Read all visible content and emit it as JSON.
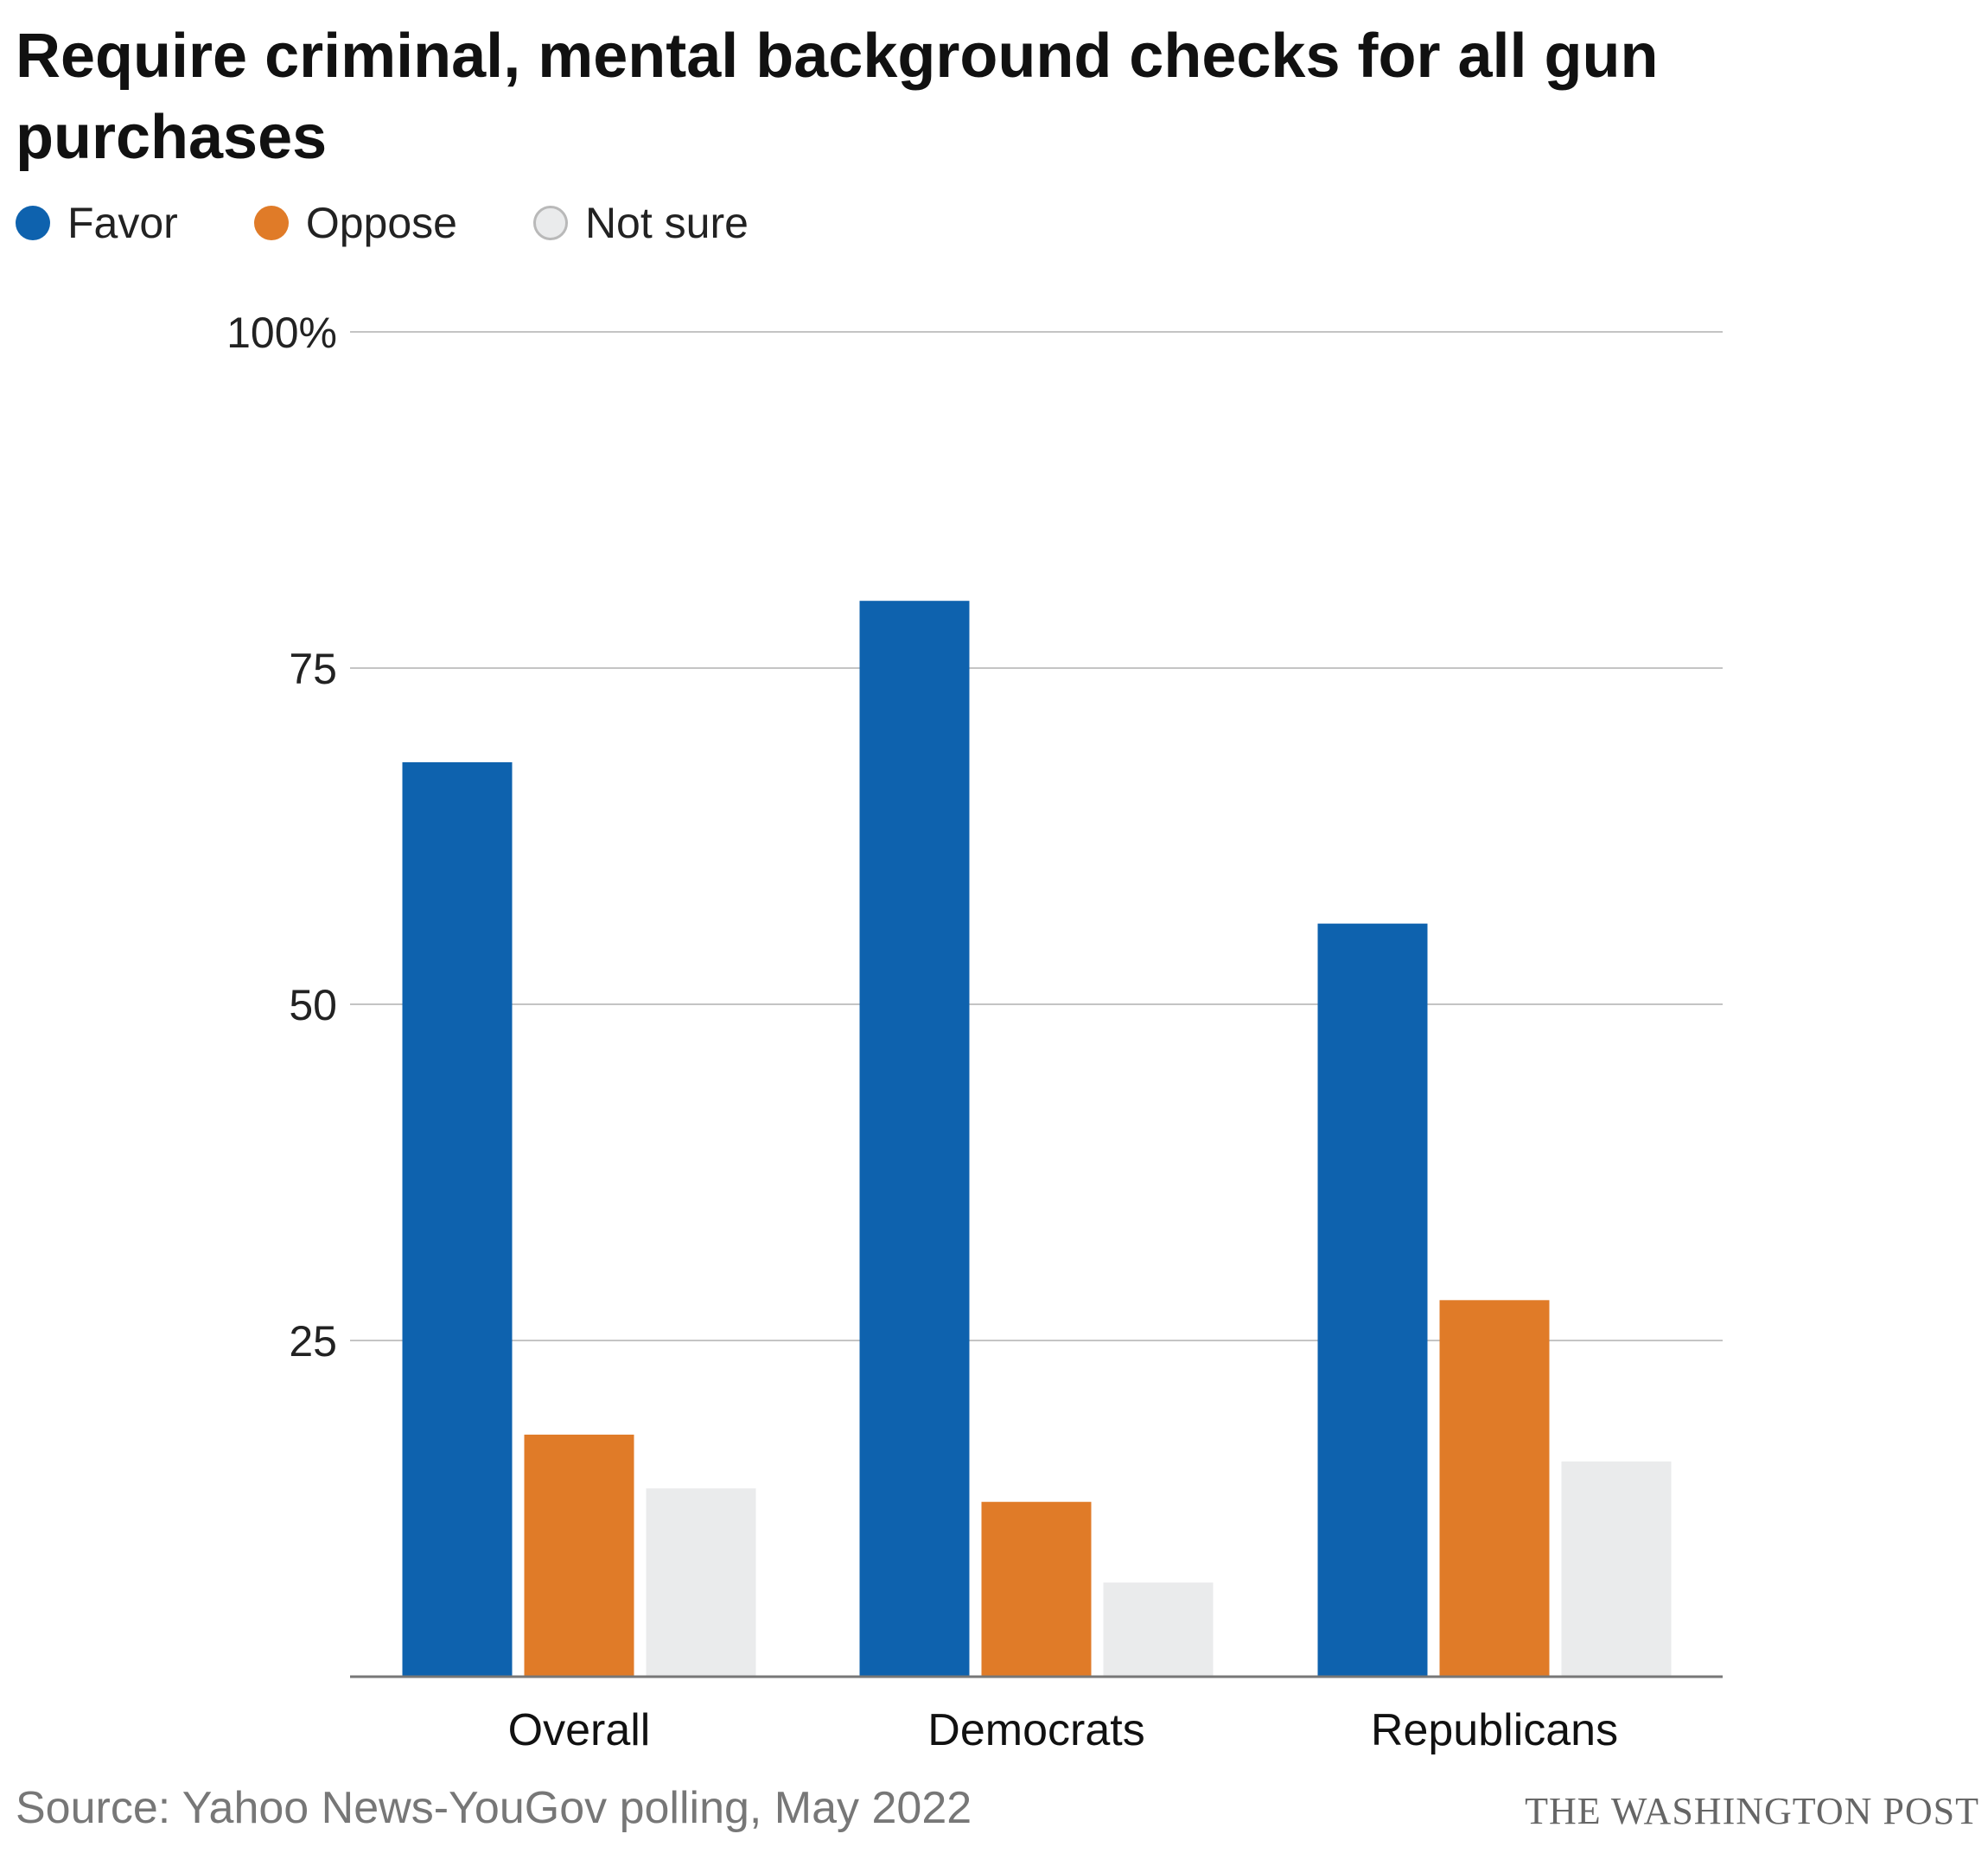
{
  "title": "Require criminal, mental background checks for all gun purchases",
  "legend": [
    {
      "label": "Favor",
      "color": "#0e62ae"
    },
    {
      "label": "Oppose",
      "color": "#e07b28"
    },
    {
      "label": "Not sure",
      "color": "#eaebec"
    }
  ],
  "chart_data": {
    "type": "bar",
    "categories": [
      "Overall",
      "Democrats",
      "Republicans"
    ],
    "series": [
      {
        "name": "Favor",
        "values": [
          68,
          80,
          56
        ],
        "color": "#0e62ae"
      },
      {
        "name": "Oppose",
        "values": [
          18,
          13,
          28
        ],
        "color": "#e07b28"
      },
      {
        "name": "Not sure",
        "values": [
          14,
          7,
          16
        ],
        "color": "#eaebec"
      }
    ],
    "ylim": [
      0,
      100
    ],
    "yticks": [
      {
        "value": 25,
        "label": "25"
      },
      {
        "value": 50,
        "label": "50"
      },
      {
        "value": 75,
        "label": "75"
      },
      {
        "value": 100,
        "label": "100%"
      }
    ],
    "grid": true,
    "legend_position": "top-left"
  },
  "footer": {
    "source": "Source: Yahoo News-YouGov polling, May 2022",
    "credit": "THE WASHINGTON POST"
  }
}
